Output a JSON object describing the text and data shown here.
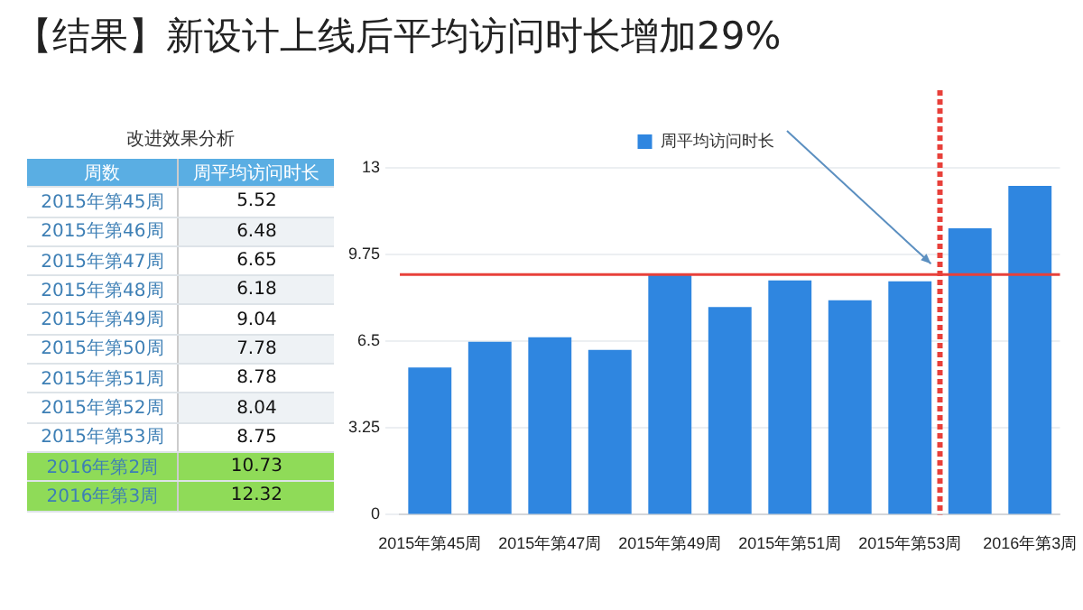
{
  "chart_data": [
    {
      "type": "other",
      "title": "改进效果分析",
      "annotations": [
        "周数"
      ],
      "data_labels": true,
      "categories": [
        "2015年第45周",
        "2015年第46周",
        "2015年第47周",
        "2015年第48周",
        "2015年第49周",
        "2015年第50周",
        "2015年第51周",
        "2015年第52周",
        "2015年第53周",
        "2016年第2周",
        "2016年第3周"
      ],
      "series": [
        {
          "name": "周平均访问时长",
          "values": [
            5.52,
            6.48,
            6.65,
            6.18,
            9.04,
            7.78,
            8.78,
            8.04,
            8.75,
            10.73,
            12.32
          ],
          "colors": [
            "#ffffff",
            "#eef2f5",
            "#ffffff",
            "#eef2f5",
            "#ffffff",
            "#eef2f5",
            "#ffffff",
            "#eef2f5",
            "#ffffff",
            "#8fdb58",
            "#8fdb58"
          ]
        }
      ]
    },
    {
      "type": "bar",
      "title": "【结果】新设计上线后平均访问时长增加29%",
      "categories": [
        "2015年第45周",
        null,
        "2015年第47周",
        null,
        "2015年第49周",
        null,
        "2015年第51周",
        null,
        "2015年第53周",
        null,
        "2016年第3周"
      ],
      "series": [
        {
          "name": "周平均访问时长",
          "color": "#2f86e0",
          "values": [
            5.52,
            6.48,
            6.65,
            6.18,
            9.04,
            7.78,
            8.78,
            8.04,
            8.75,
            10.73,
            12.32
          ]
        }
      ],
      "ylim": [
        0,
        13
      ],
      "yticks": [
        0,
        3.25,
        6.5,
        9.75,
        13
      ],
      "grid": "y",
      "legend": "top",
      "ref_lines": [
        {
          "axis": "y",
          "value": 9,
          "color": "#e8403a"
        },
        {
          "axis": "x",
          "value": "2015年第53周",
          "color": "#e8403a",
          "line_style": "dashed"
        }
      ]
    }
  ]
}
